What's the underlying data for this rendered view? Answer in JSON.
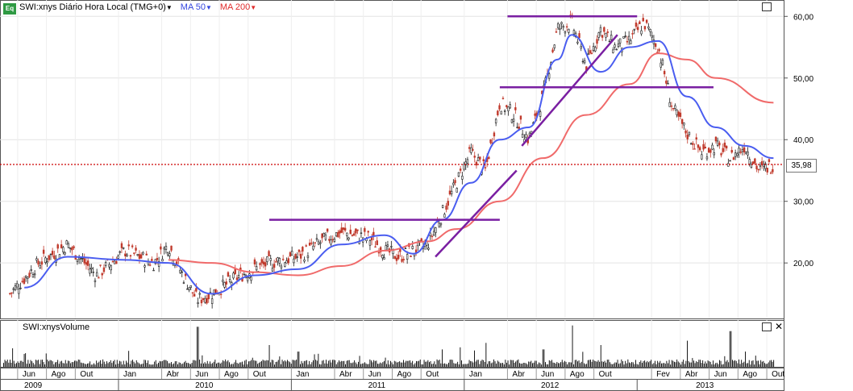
{
  "header": {
    "eq_badge": "Eq",
    "symbol": "SWI:xnys Diário Hora Local (TMG+0)",
    "ma50": "MA 50",
    "ma200": "MA 200"
  },
  "volume_panel": {
    "title": "SWI:xnysVolume"
  },
  "last_price_label": "35,98",
  "colors": {
    "price_up": "#1a1a1a",
    "price_down": "#c0392b",
    "ma50": "#4a5df0",
    "ma200": "#f06a6a",
    "trend_lines": "#7a1fa2",
    "last_price": "#cc0000",
    "volume": "#000000"
  },
  "chart_data": [
    {
      "type": "line",
      "title": "SWI:xnys Diário Hora Local (TMG+0)",
      "xlabel": "",
      "ylabel": "",
      "y_ticks": [
        "20,00",
        "30,00",
        "40,00",
        "50,00",
        "60,00"
      ],
      "ylim": [
        11,
        62
      ],
      "x_month_labels": [
        "Jun",
        "Ago",
        "Out",
        "Jan",
        "Abr",
        "Jun",
        "Ago",
        "Out",
        "Jan",
        "Abr",
        "Jun",
        "Ago",
        "Out",
        "Jan",
        "Abr",
        "Jun",
        "Ago",
        "Out",
        "Fev",
        "Abr",
        "Jun",
        "Ago",
        "Out"
      ],
      "x_year_labels": [
        "2009",
        "2010",
        "2011",
        "2012",
        "2013"
      ],
      "x_range": [
        "2009-05",
        "2013-10"
      ],
      "series": [
        {
          "name": "SWI:xnys",
          "kind": "candlestick_close",
          "x": [
            "2009-05",
            "2009-07",
            "2009-09",
            "2009-11",
            "2010-01",
            "2010-03",
            "2010-04",
            "2010-05",
            "2010-06",
            "2010-07",
            "2010-09",
            "2010-11",
            "2011-01",
            "2011-03",
            "2011-04",
            "2011-06",
            "2011-07",
            "2011-08",
            "2011-09",
            "2011-10",
            "2011-11",
            "2011-12",
            "2012-01",
            "2012-02",
            "2012-03",
            "2012-04",
            "2012-05",
            "2012-06",
            "2012-07",
            "2012-08",
            "2012-09",
            "2012-10",
            "2012-11",
            "2012-12",
            "2013-01",
            "2013-02",
            "2013-03",
            "2013-04",
            "2013-05",
            "2013-06",
            "2013-07",
            "2013-08",
            "2013-09",
            "2013-10"
          ],
          "values": [
            15,
            20,
            23,
            18,
            22,
            20,
            23,
            18,
            14,
            15,
            18,
            20,
            21,
            24,
            25,
            24,
            22,
            21,
            22,
            23,
            28,
            33,
            38,
            35,
            46,
            44,
            40,
            47,
            58,
            59,
            52,
            58,
            55,
            56,
            59,
            55,
            45,
            41,
            38,
            39,
            37,
            39,
            35,
            36
          ]
        },
        {
          "name": "MA 50",
          "x": [
            "2009-06",
            "2009-09",
            "2010-01",
            "2010-04",
            "2010-07",
            "2010-10",
            "2011-01",
            "2011-04",
            "2011-07",
            "2011-09",
            "2011-11",
            "2012-01",
            "2012-03",
            "2012-05",
            "2012-07",
            "2012-08",
            "2012-10",
            "2012-12",
            "2013-02",
            "2013-04",
            "2013-06",
            "2013-08",
            "2013-10"
          ],
          "values": [
            16,
            21,
            20.5,
            20,
            15,
            18,
            19,
            23,
            24.5,
            21.5,
            27,
            33,
            40,
            42,
            53,
            57,
            51,
            55,
            56,
            47,
            42,
            39,
            37
          ]
        },
        {
          "name": "MA 200",
          "x": [
            "2010-04",
            "2010-07",
            "2010-10",
            "2011-01",
            "2011-04",
            "2011-07",
            "2011-10",
            "2011-12",
            "2012-03",
            "2012-06",
            "2012-09",
            "2012-12",
            "2013-02",
            "2013-04",
            "2013-06",
            "2013-10"
          ],
          "values": [
            20.5,
            20,
            18.5,
            18,
            19.5,
            22,
            23.5,
            25.5,
            30,
            37,
            44,
            49,
            54,
            53,
            50,
            46
          ]
        }
      ],
      "annotations": {
        "horizontal_lines": [
          {
            "y": 60.0
          },
          {
            "y": 48.5
          },
          {
            "y": 27.0
          }
        ],
        "trend_lines": [
          {
            "x": [
              "2011-11",
              "2012-04"
            ],
            "y": [
              21,
              35
            ]
          },
          {
            "x": [
              "2012-05",
              "2012-11"
            ],
            "y": [
              39,
              57
            ]
          }
        ],
        "last_price": 35.98
      },
      "grid": true
    },
    {
      "type": "bar",
      "title": "SWI:xnysVolume",
      "notes": ""
    }
  ]
}
